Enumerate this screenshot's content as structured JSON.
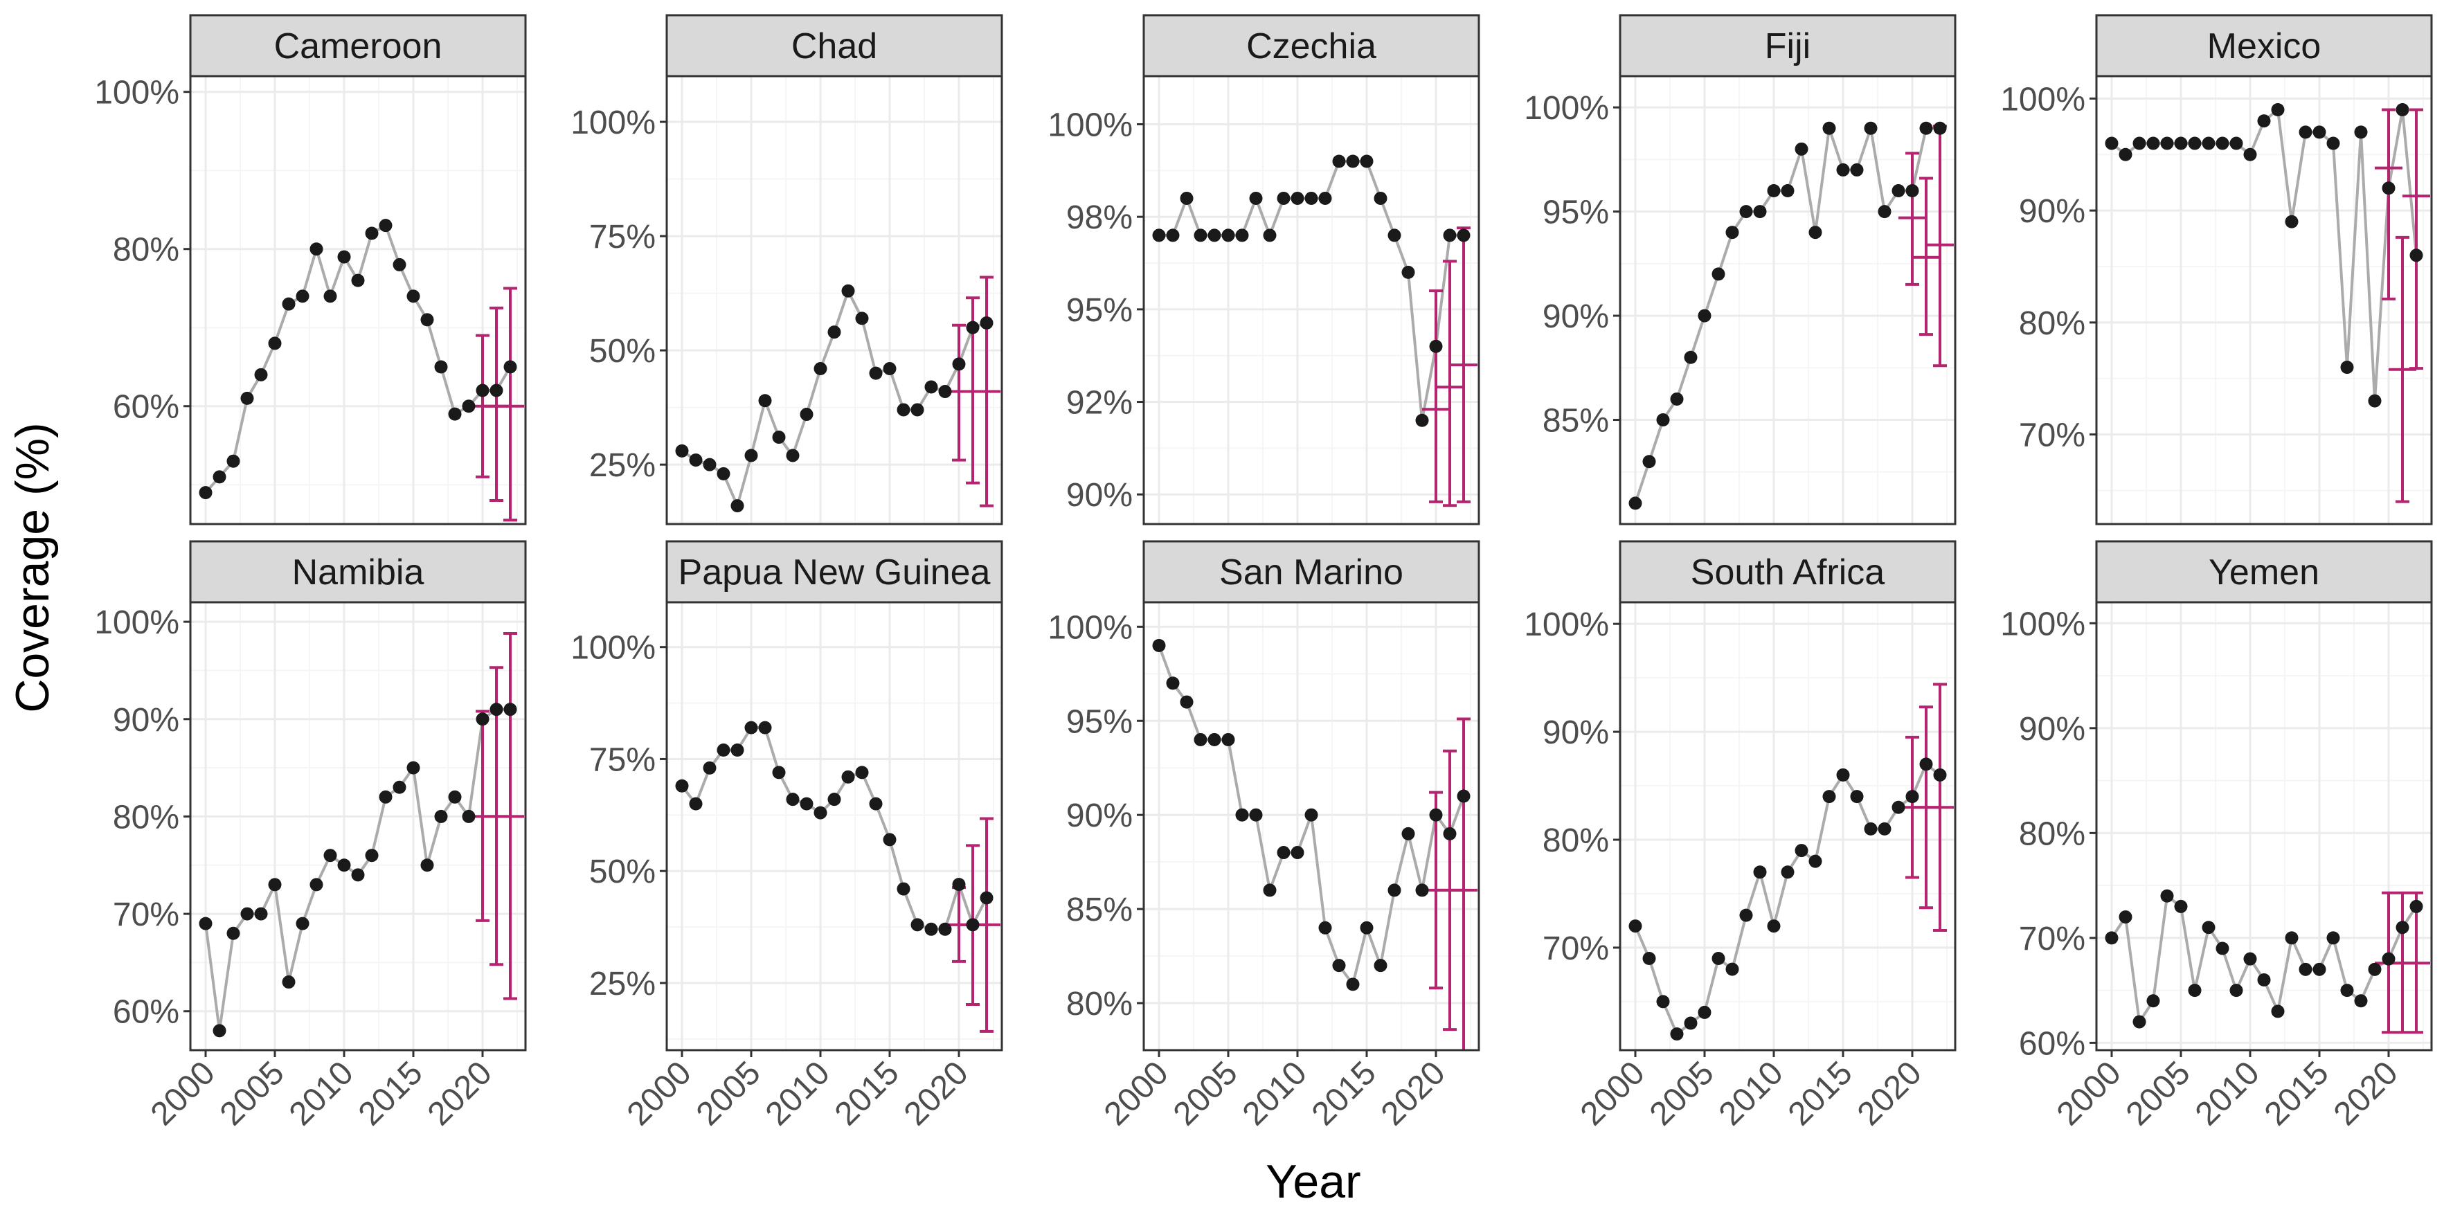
{
  "figure": {
    "xlabel": "Year",
    "ylabel": "Coverage (%)"
  },
  "colors": {
    "point": "#1a1a1a",
    "line": "#ababab",
    "errorbar": "#b5246f",
    "strip": "#d9d9d9",
    "grid_major": "#ebebeb",
    "grid_minor": "#f5f5f5",
    "panel_border": "#333333"
  },
  "chart_data": [
    {
      "type": "line",
      "title": "Cameroon",
      "xlim": [
        1998.9,
        2023.1
      ],
      "ylim": [
        45,
        102
      ],
      "x_ticks": [
        2000,
        2005,
        2010,
        2015,
        2020
      ],
      "y_ticks": [
        {
          "value": 60,
          "label": "60%"
        },
        {
          "value": 80,
          "label": "80%"
        },
        {
          "value": 100,
          "label": "100%"
        }
      ],
      "series": [
        {
          "x": [
            2000,
            2001,
            2002,
            2003,
            2004,
            2005,
            2006,
            2007,
            2008,
            2009,
            2010,
            2011,
            2012,
            2013,
            2014,
            2015,
            2016,
            2017,
            2018,
            2019,
            2020,
            2021,
            2022
          ],
          "y": [
            49,
            51,
            53,
            61,
            64,
            68,
            73,
            74,
            80,
            74,
            79,
            76,
            82,
            83,
            78,
            74,
            71,
            65,
            59,
            60,
            62,
            62,
            65
          ]
        }
      ],
      "error_bars": [
        {
          "x": 2020,
          "estimate": 60,
          "low": 51,
          "high": 69
        },
        {
          "x": 2021,
          "estimate": 60,
          "low": 48,
          "high": 72.5
        },
        {
          "x": 2022,
          "estimate": 60,
          "low": 45.5,
          "high": 75
        }
      ]
    },
    {
      "type": "line",
      "title": "Chad",
      "xlim": [
        1998.9,
        2023.1
      ],
      "ylim": [
        12,
        110
      ],
      "x_ticks": [
        2000,
        2005,
        2010,
        2015,
        2020
      ],
      "y_ticks": [
        {
          "value": 25,
          "label": "25%"
        },
        {
          "value": 50,
          "label": "50%"
        },
        {
          "value": 75,
          "label": "75%"
        },
        {
          "value": 100,
          "label": "100%"
        }
      ],
      "series": [
        {
          "x": [
            2000,
            2001,
            2002,
            2003,
            2004,
            2005,
            2006,
            2007,
            2008,
            2009,
            2010,
            2011,
            2012,
            2013,
            2014,
            2015,
            2016,
            2017,
            2018,
            2019,
            2020,
            2021,
            2022
          ],
          "y": [
            28,
            26,
            25,
            23,
            16,
            27,
            39,
            31,
            27,
            36,
            46,
            54,
            63,
            57,
            45,
            46,
            37,
            37,
            42,
            41,
            47,
            55,
            56
          ]
        }
      ],
      "error_bars": [
        {
          "x": 2020,
          "estimate": 41,
          "low": 26,
          "high": 55.5
        },
        {
          "x": 2021,
          "estimate": 41,
          "low": 21,
          "high": 61.5
        },
        {
          "x": 2022,
          "estimate": 41,
          "low": 16,
          "high": 66
        }
      ]
    },
    {
      "type": "line",
      "title": "Czechia",
      "xlim": [
        1998.9,
        2023.1
      ],
      "ylim": [
        89.2,
        101.3
      ],
      "x_ticks": [
        2000,
        2005,
        2010,
        2015,
        2020
      ],
      "y_ticks": [
        {
          "value": 90,
          "label": "90%"
        },
        {
          "value": 92.5,
          "label": "92%"
        },
        {
          "value": 95,
          "label": "95%"
        },
        {
          "value": 97.5,
          "label": "98%"
        },
        {
          "value": 100,
          "label": "100%"
        }
      ],
      "series": [
        {
          "x": [
            2000,
            2001,
            2002,
            2003,
            2004,
            2005,
            2006,
            2007,
            2008,
            2009,
            2010,
            2011,
            2012,
            2013,
            2014,
            2015,
            2016,
            2017,
            2018,
            2019,
            2020,
            2021,
            2022
          ],
          "y": [
            97,
            97,
            98,
            97,
            97,
            97,
            97,
            98,
            97,
            98,
            98,
            98,
            98,
            99,
            99,
            99,
            98,
            97,
            96,
            92,
            94,
            97,
            97
          ]
        }
      ],
      "error_bars": [
        {
          "x": 2020,
          "estimate": 92.3,
          "low": 89.8,
          "high": 95.5
        },
        {
          "x": 2021,
          "estimate": 92.9,
          "low": 89.7,
          "high": 96.3
        },
        {
          "x": 2022,
          "estimate": 93.5,
          "low": 89.8,
          "high": 97.2
        }
      ]
    },
    {
      "type": "line",
      "title": "Fiji",
      "xlim": [
        1998.9,
        2023.1
      ],
      "ylim": [
        80,
        101.5
      ],
      "x_ticks": [
        2000,
        2005,
        2010,
        2015,
        2020
      ],
      "y_ticks": [
        {
          "value": 85,
          "label": "85%"
        },
        {
          "value": 90,
          "label": "90%"
        },
        {
          "value": 95,
          "label": "95%"
        },
        {
          "value": 100,
          "label": "100%"
        }
      ],
      "series": [
        {
          "x": [
            2000,
            2001,
            2002,
            2003,
            2004,
            2005,
            2006,
            2007,
            2008,
            2009,
            2010,
            2011,
            2012,
            2013,
            2014,
            2015,
            2016,
            2017,
            2018,
            2019,
            2020,
            2021,
            2022
          ],
          "y": [
            81,
            83,
            85,
            86,
            88,
            90,
            92,
            94,
            95,
            95,
            96,
            96,
            98,
            94,
            99,
            97,
            97,
            99,
            95,
            96,
            96,
            99,
            99
          ]
        }
      ],
      "error_bars": [
        {
          "x": 2020,
          "estimate": 94.7,
          "low": 91.5,
          "high": 97.8
        },
        {
          "x": 2021,
          "estimate": 92.8,
          "low": 89.1,
          "high": 96.6
        },
        {
          "x": 2022,
          "estimate": 93.4,
          "low": 87.6,
          "high": 99.1
        }
      ]
    },
    {
      "type": "line",
      "title": "Mexico",
      "xlim": [
        1998.9,
        2023.1
      ],
      "ylim": [
        62,
        102
      ],
      "x_ticks": [
        2000,
        2005,
        2010,
        2015,
        2020
      ],
      "y_ticks": [
        {
          "value": 70,
          "label": "70%"
        },
        {
          "value": 80,
          "label": "80%"
        },
        {
          "value": 90,
          "label": "90%"
        },
        {
          "value": 100,
          "label": "100%"
        }
      ],
      "series": [
        {
          "x": [
            2000,
            2001,
            2002,
            2003,
            2004,
            2005,
            2006,
            2007,
            2008,
            2009,
            2010,
            2011,
            2012,
            2013,
            2014,
            2015,
            2016,
            2017,
            2018,
            2019,
            2020,
            2021,
            2022
          ],
          "y": [
            96,
            95,
            96,
            96,
            96,
            96,
            96,
            96,
            96,
            96,
            95,
            98,
            99,
            89,
            97,
            97,
            96,
            76,
            97,
            73,
            92,
            99,
            86
          ]
        }
      ],
      "error_bars": [
        {
          "x": 2020,
          "estimate": 93.8,
          "low": 82.1,
          "high": 99
        },
        {
          "x": 2021,
          "estimate": 75.8,
          "low": 64,
          "high": 87.6
        },
        {
          "x": 2022,
          "estimate": 91.3,
          "low": 75.9,
          "high": 99
        }
      ]
    },
    {
      "type": "line",
      "title": "Namibia",
      "xlim": [
        1998.9,
        2023.1
      ],
      "ylim": [
        56,
        102
      ],
      "x_ticks": [
        2000,
        2005,
        2010,
        2015,
        2020
      ],
      "y_ticks": [
        {
          "value": 60,
          "label": "60%"
        },
        {
          "value": 70,
          "label": "70%"
        },
        {
          "value": 80,
          "label": "80%"
        },
        {
          "value": 90,
          "label": "90%"
        },
        {
          "value": 100,
          "label": "100%"
        }
      ],
      "series": [
        {
          "x": [
            2000,
            2001,
            2002,
            2003,
            2004,
            2005,
            2006,
            2007,
            2008,
            2009,
            2010,
            2011,
            2012,
            2013,
            2014,
            2015,
            2016,
            2017,
            2018,
            2019,
            2020,
            2021,
            2022
          ],
          "y": [
            69,
            58,
            68,
            70,
            70,
            73,
            63,
            69,
            73,
            76,
            75,
            74,
            76,
            82,
            83,
            85,
            75,
            80,
            82,
            80,
            90,
            91,
            91
          ]
        }
      ],
      "error_bars": [
        {
          "x": 2020,
          "estimate": 80,
          "low": 69.3,
          "high": 90.8
        },
        {
          "x": 2021,
          "estimate": 80,
          "low": 64.8,
          "high": 95.3
        },
        {
          "x": 2022,
          "estimate": 80,
          "low": 61.3,
          "high": 98.8
        }
      ]
    },
    {
      "type": "line",
      "title": "Papua New Guinea",
      "xlim": [
        1998.9,
        2023.1
      ],
      "ylim": [
        10,
        110
      ],
      "x_ticks": [
        2000,
        2005,
        2010,
        2015,
        2020
      ],
      "y_ticks": [
        {
          "value": 25,
          "label": "25%"
        },
        {
          "value": 50,
          "label": "50%"
        },
        {
          "value": 75,
          "label": "75%"
        },
        {
          "value": 100,
          "label": "100%"
        }
      ],
      "series": [
        {
          "x": [
            2000,
            2001,
            2002,
            2003,
            2004,
            2005,
            2006,
            2007,
            2008,
            2009,
            2010,
            2011,
            2012,
            2013,
            2014,
            2015,
            2016,
            2017,
            2018,
            2019,
            2020,
            2021,
            2022
          ],
          "y": [
            69,
            65,
            73,
            77,
            77,
            82,
            82,
            72,
            66,
            65,
            63,
            66,
            71,
            72,
            65,
            57,
            46,
            38,
            37,
            37,
            47,
            38,
            44
          ]
        }
      ],
      "error_bars": [
        {
          "x": 2020,
          "estimate": 38,
          "low": 29.8,
          "high": 46.3
        },
        {
          "x": 2021,
          "estimate": 38,
          "low": 20.2,
          "high": 55.7
        },
        {
          "x": 2022,
          "estimate": 38,
          "low": 14.2,
          "high": 61.7
        }
      ]
    },
    {
      "type": "line",
      "title": "San Marino",
      "xlim": [
        1998.9,
        2023.1
      ],
      "ylim": [
        77.5,
        101.3
      ],
      "x_ticks": [
        2000,
        2005,
        2010,
        2015,
        2020
      ],
      "y_ticks": [
        {
          "value": 80,
          "label": "80%"
        },
        {
          "value": 85,
          "label": "85%"
        },
        {
          "value": 90,
          "label": "90%"
        },
        {
          "value": 95,
          "label": "95%"
        },
        {
          "value": 100,
          "label": "100%"
        }
      ],
      "series": [
        {
          "x": [
            2000,
            2001,
            2002,
            2003,
            2004,
            2005,
            2006,
            2007,
            2008,
            2009,
            2010,
            2011,
            2012,
            2013,
            2014,
            2015,
            2016,
            2017,
            2018,
            2019,
            2020,
            2021,
            2022
          ],
          "y": [
            99,
            97,
            96,
            94,
            94,
            94,
            90,
            90,
            86,
            88,
            88,
            90,
            84,
            82,
            81,
            84,
            82,
            86,
            89,
            86,
            90,
            89,
            91
          ]
        }
      ],
      "error_bars": [
        {
          "x": 2020,
          "estimate": 86,
          "low": 80.8,
          "high": 91.2
        },
        {
          "x": 2021,
          "estimate": 86,
          "low": 78.6,
          "high": 93.4
        },
        {
          "x": 2022,
          "estimate": 86,
          "low": 76.9,
          "high": 95.1
        }
      ]
    },
    {
      "type": "line",
      "title": "South Africa",
      "xlim": [
        1998.9,
        2023.1
      ],
      "ylim": [
        60.5,
        102
      ],
      "x_ticks": [
        2000,
        2005,
        2010,
        2015,
        2020
      ],
      "y_ticks": [
        {
          "value": 70,
          "label": "70%"
        },
        {
          "value": 80,
          "label": "80%"
        },
        {
          "value": 90,
          "label": "90%"
        },
        {
          "value": 100,
          "label": "100%"
        }
      ],
      "series": [
        {
          "x": [
            2000,
            2001,
            2002,
            2003,
            2004,
            2005,
            2006,
            2007,
            2008,
            2009,
            2010,
            2011,
            2012,
            2013,
            2014,
            2015,
            2016,
            2017,
            2018,
            2019,
            2020,
            2021,
            2022
          ],
          "y": [
            72,
            69,
            65,
            62,
            63,
            64,
            69,
            68,
            73,
            77,
            72,
            77,
            79,
            78,
            84,
            86,
            84,
            81,
            81,
            83,
            84,
            87,
            86
          ]
        }
      ],
      "error_bars": [
        {
          "x": 2020,
          "estimate": 83,
          "low": 76.5,
          "high": 89.5
        },
        {
          "x": 2021,
          "estimate": 83,
          "low": 73.7,
          "high": 92.3
        },
        {
          "x": 2022,
          "estimate": 83,
          "low": 71.6,
          "high": 94.4
        }
      ]
    },
    {
      "type": "line",
      "title": "Yemen",
      "xlim": [
        1998.9,
        2023.1
      ],
      "ylim": [
        59.3,
        102
      ],
      "x_ticks": [
        2000,
        2005,
        2010,
        2015,
        2020
      ],
      "y_ticks": [
        {
          "value": 60,
          "label": "60%"
        },
        {
          "value": 70,
          "label": "70%"
        },
        {
          "value": 80,
          "label": "80%"
        },
        {
          "value": 90,
          "label": "90%"
        },
        {
          "value": 100,
          "label": "100%"
        }
      ],
      "series": [
        {
          "x": [
            2000,
            2001,
            2002,
            2003,
            2004,
            2005,
            2006,
            2007,
            2008,
            2009,
            2010,
            2011,
            2012,
            2013,
            2014,
            2015,
            2016,
            2017,
            2018,
            2019,
            2020,
            2021,
            2022
          ],
          "y": [
            70,
            72,
            62,
            64,
            74,
            73,
            65,
            71,
            69,
            65,
            68,
            66,
            63,
            70,
            67,
            67,
            70,
            65,
            64,
            67,
            68,
            71,
            73
          ]
        }
      ],
      "error_bars": [
        {
          "x": 2020,
          "estimate": 67.6,
          "low": 61,
          "high": 74.3
        },
        {
          "x": 2021,
          "estimate": 67.6,
          "low": 61,
          "high": 74.3
        },
        {
          "x": 2022,
          "estimate": 67.6,
          "low": 61,
          "high": 74.3
        }
      ]
    }
  ]
}
